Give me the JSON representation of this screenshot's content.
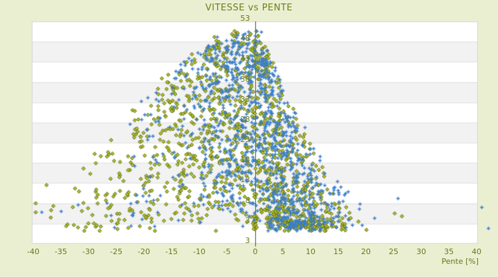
{
  "chart_data": {
    "type": "scatter",
    "title": "VITESSE vs PENTE",
    "xlabel": "Pente [%]",
    "ylabel": "",
    "xlim": [
      -40.2,
      40.2
    ],
    "ylim": [
      -2,
      53
    ],
    "x_ticks": [
      "-40",
      "-35",
      "-30",
      "-25",
      "-20",
      "-15",
      "-10",
      "-5",
      "0",
      "5",
      "10",
      "15",
      "20",
      "25",
      "30",
      "35",
      "40"
    ],
    "x_tick_values": [
      -40,
      -35,
      -30,
      -25,
      -20,
      -15,
      -10,
      -5,
      0,
      5,
      10,
      15,
      20,
      25,
      30,
      35,
      40
    ],
    "y_ticks": [
      "53",
      "48",
      "43",
      "38",
      "33",
      "28",
      "23",
      "18",
      "13",
      "8",
      "3"
    ],
    "y_tick_values": [
      53,
      48,
      43,
      38,
      33,
      28,
      23,
      18,
      13,
      8,
      3
    ],
    "y_axis_end_label": "3",
    "grid": {
      "horizontal_bands": true,
      "band_color": "#f2f2f2",
      "line_color": "#e0e0e0",
      "border_color": "#d6d6d6"
    },
    "legend": "none",
    "colors": {
      "page_bg": "#ebefd2",
      "plot_bg": "#ffffff",
      "title_text": "#6e7e1c",
      "tick_text": "#68771a",
      "zero_axis_line": "#4a550f",
      "series_blue": "#3b7ec9",
      "series_olive_stroke": "#5c690e",
      "series_olive_fill": "#b3c42f"
    },
    "series": [
      {
        "name": "series-olive",
        "marker": "diamond",
        "n": 1250,
        "p_mixture": [
          {
            "mean": -6,
            "sd": 4.8,
            "w": 0.3
          },
          {
            "mean": -15,
            "sd": 7.0,
            "w": 0.18
          },
          {
            "mean": 2.5,
            "sd": 2.2,
            "w": 0.2
          },
          {
            "mean": 8.5,
            "sd": 4.0,
            "w": 0.26
          },
          {
            "mean": -26,
            "sd": 6.0,
            "w": 0.06
          }
        ],
        "v_exp": [
          {
            "pmax": -28,
            "e": 1.8
          },
          {
            "pmax": -18,
            "e": 1.2
          },
          {
            "pmax": 2,
            "e": 0.7
          },
          {
            "pmax": 5,
            "e": 1.5
          },
          {
            "pmax": 99,
            "e": 2.5
          }
        ],
        "axis_clusters": [
          {
            "n": 22,
            "p_sd": 0.18,
            "v_min": 1.6,
            "v_max": 5.2
          },
          {
            "n": 7,
            "p_sd": 0.15,
            "v_min": 44.0,
            "v_max": 47.5
          }
        ],
        "outliers": [
          [
            -25.5,
            9.7
          ],
          [
            26.5,
            4.8
          ],
          [
            25.2,
            5.5
          ]
        ]
      },
      {
        "name": "series-blue",
        "marker": "plus",
        "n": 1100,
        "p_mixture": [
          {
            "mean": -3.5,
            "sd": 4.0,
            "w": 0.4
          },
          {
            "mean": 3.5,
            "sd": 2.8,
            "w": 0.28
          },
          {
            "mean": 9.0,
            "sd": 4.2,
            "w": 0.22
          },
          {
            "mean": -13,
            "sd": 6.0,
            "w": 0.1
          }
        ],
        "v_exp": [
          {
            "pmax": -28,
            "e": 1.8
          },
          {
            "pmax": -18,
            "e": 1.2
          },
          {
            "pmax": 2,
            "e": 0.65
          },
          {
            "pmax": 6,
            "e": 1.25
          },
          {
            "pmax": 99,
            "e": 2.0
          }
        ],
        "axis_clusters": [],
        "outliers": [
          [
            40.9,
            7.0
          ],
          [
            42.1,
            1.8
          ],
          [
            -38.4,
            5.8
          ],
          [
            -34.9,
            6.0
          ],
          [
            25.8,
            9.2
          ]
        ]
      }
    ],
    "envelope": {
      "v_floor": 2.2,
      "v_cap": 51.6,
      "uphill": {
        "base": 3,
        "amp": 48,
        "scale": 11,
        "power": 1.4
      },
      "downhill": {
        "base": 3,
        "amp": 48,
        "scale": 30,
        "power": 2.0
      }
    },
    "generator_seed": 1337,
    "p_clip": [
      -39.5,
      27
    ]
  }
}
